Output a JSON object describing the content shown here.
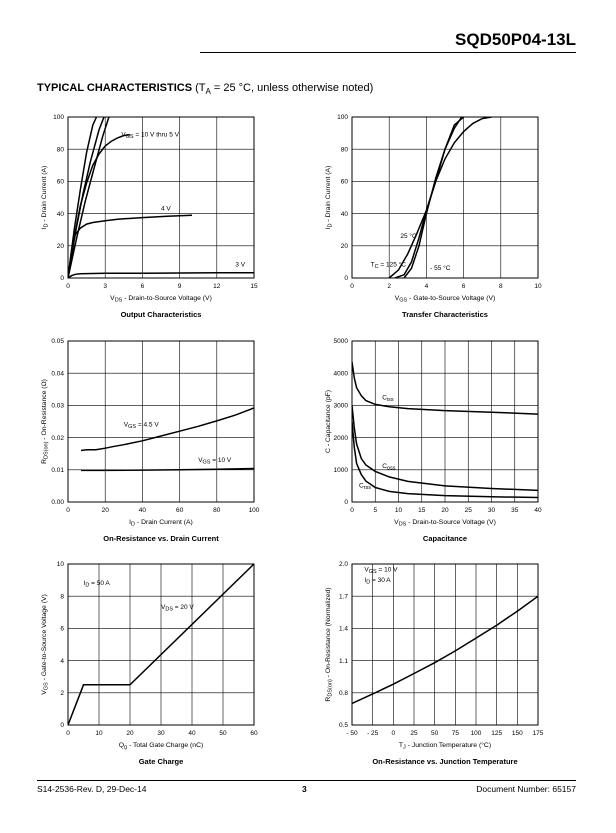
{
  "header": {
    "part_number": "SQD50P04-13L"
  },
  "section": {
    "title": "TYPICAL CHARACTERISTICS",
    "cond_pre": "(T",
    "cond_sub": "A",
    "cond_post": " = 25 °C, unless otherwise noted)"
  },
  "footer": {
    "left": "S14-2536-Rev. D, 29-Dec-14",
    "page": "3",
    "right": "Document Number: 65157"
  },
  "colors": {
    "line": "#000000",
    "grid": "#000000"
  },
  "chart_data": [
    {
      "type": "line",
      "title": "Output Characteristics",
      "xlabel": [
        [
          "V"
        ],
        [
          "DS",
          "sub"
        ],
        [
          " - Drain-to-Source Voltage (V)"
        ]
      ],
      "ylabel": [
        [
          "I"
        ],
        [
          "D",
          "sub"
        ],
        [
          " - Drain Current (A)"
        ]
      ],
      "xlim": [
        0,
        15
      ],
      "ylim": [
        0,
        100
      ],
      "xticks": [
        0,
        3,
        6,
        9,
        12,
        15
      ],
      "yticks": [
        0,
        20,
        40,
        60,
        80,
        100
      ],
      "grid": true,
      "series": [
        {
          "x": [
            0,
            0.5,
            1,
            1.5,
            2.0,
            2.3
          ],
          "y": [
            0,
            30,
            55,
            78,
            95,
            100
          ]
        },
        {
          "x": [
            0,
            0.6,
            1.2,
            1.8,
            2.5,
            2.9
          ],
          "y": [
            0,
            28,
            52,
            72,
            92,
            100
          ]
        },
        {
          "x": [
            0,
            0.7,
            1.4,
            2.1,
            2.8,
            3.3
          ],
          "y": [
            0,
            25,
            48,
            68,
            88,
            100
          ]
        },
        {
          "x": [
            0,
            0.5,
            1,
            1.5,
            2,
            2.5,
            3,
            3.5,
            4,
            4.5,
            5
          ],
          "y": [
            0,
            25,
            45,
            59,
            70,
            77,
            82,
            85,
            87,
            88.5,
            89
          ]
        },
        {
          "x": [
            0,
            0.3,
            0.6,
            1,
            1.5,
            2,
            3,
            4,
            6,
            8,
            10
          ],
          "y": [
            0,
            18,
            27,
            31,
            33.5,
            34.5,
            35.5,
            36.5,
            37.5,
            38.3,
            39
          ]
        },
        {
          "x": [
            0,
            0.3,
            0.6,
            1,
            2,
            3,
            6,
            9,
            12,
            15
          ],
          "y": [
            0,
            1.5,
            2.3,
            2.6,
            2.8,
            2.9,
            3.0,
            3.1,
            3.2,
            3.3
          ]
        }
      ],
      "annotations": [
        {
          "parts": [
            [
              "V"
            ],
            [
              "GS",
              "sub"
            ],
            [
              " = 10 V thru 5 V"
            ]
          ],
          "x": 4.3,
          "y": 88
        },
        {
          "parts": [
            [
              "4 V"
            ]
          ],
          "x": 7.5,
          "y": 42
        },
        {
          "parts": [
            [
              "3 V"
            ]
          ],
          "x": 13.5,
          "y": 7
        }
      ]
    },
    {
      "type": "line",
      "title": "Transfer Characteristics",
      "xlabel": [
        [
          "V"
        ],
        [
          "GS",
          "sub"
        ],
        [
          " - Gate-to-Source Voltage (V)"
        ]
      ],
      "ylabel": [
        [
          "I"
        ],
        [
          "D",
          "sub"
        ],
        [
          " - Drain Current (A)"
        ]
      ],
      "xlim": [
        0,
        10
      ],
      "ylim": [
        0,
        100
      ],
      "xticks": [
        0,
        2,
        4,
        6,
        8,
        10
      ],
      "yticks": [
        0,
        20,
        40,
        60,
        80,
        100
      ],
      "grid": true,
      "series": [
        {
          "name": "25 °C",
          "x": [
            2.3,
            2.8,
            3.2,
            3.6,
            4.0,
            4.5,
            5.0,
            5.5,
            6.0,
            6.5,
            7.0,
            7.5
          ],
          "y": [
            0,
            2,
            10,
            25,
            42,
            60,
            74,
            84,
            91,
            96,
            99,
            100
          ]
        },
        {
          "name": "125 °C",
          "x": [
            2.0,
            2.5,
            3.0,
            3.5,
            4.0,
            4.5,
            5.0,
            5.5,
            6.0
          ],
          "y": [
            0,
            5,
            15,
            28,
            42,
            60,
            80,
            95,
            100
          ]
        },
        {
          "name": "- 55 °C",
          "x": [
            2.8,
            3.2,
            3.6,
            4.0,
            4.5,
            5.0,
            5.5,
            5.9
          ],
          "y": [
            0,
            6,
            20,
            40,
            62,
            80,
            93,
            100
          ]
        }
      ],
      "annotations": [
        {
          "parts": [
            [
              "25 °C"
            ]
          ],
          "x": 2.6,
          "y": 25
        },
        {
          "parts": [
            [
              "T"
            ],
            [
              "C",
              "sub"
            ],
            [
              " = 125 °C"
            ]
          ],
          "x": 1.0,
          "y": 7
        },
        {
          "parts": [
            [
              "- 55 °C"
            ]
          ],
          "x": 4.2,
          "y": 5
        }
      ]
    },
    {
      "type": "line",
      "title": "On-Resistance vs. Drain Current",
      "xlabel": [
        [
          "I"
        ],
        [
          "D",
          "sub"
        ],
        [
          " - Drain Current (A)"
        ]
      ],
      "ylabel": [
        [
          "R"
        ],
        [
          "DS(on)",
          "sub"
        ],
        [
          " - On-Resistance (Ω)"
        ]
      ],
      "xlim": [
        0,
        100
      ],
      "ylim": [
        0,
        0.05
      ],
      "xticks": [
        0,
        20,
        40,
        60,
        80,
        100
      ],
      "yticks": [
        0.0,
        0.01,
        0.02,
        0.03,
        0.04,
        0.05
      ],
      "ytick_labels": [
        "0.00",
        "0.01",
        "0.02",
        "0.03",
        "0.04",
        "0.05"
      ],
      "grid": true,
      "series": [
        {
          "name": "VGS = 4.5 V",
          "x": [
            7,
            10,
            15,
            20,
            25,
            30,
            40,
            50,
            60,
            70,
            80,
            90,
            100
          ],
          "y": [
            0.016,
            0.0162,
            0.0162,
            0.0167,
            0.0173,
            0.0178,
            0.019,
            0.0205,
            0.022,
            0.0235,
            0.0252,
            0.027,
            0.0292
          ]
        },
        {
          "name": "VGS = 10 V",
          "x": [
            7,
            20,
            40,
            60,
            80,
            100
          ],
          "y": [
            0.0098,
            0.0098,
            0.0099,
            0.01,
            0.0102,
            0.0104
          ]
        }
      ],
      "annotations": [
        {
          "parts": [
            [
              "V"
            ],
            [
              "GS",
              "sub"
            ],
            [
              " = 4.5 V"
            ]
          ],
          "x": 30,
          "y": 0.0235
        },
        {
          "parts": [
            [
              "V"
            ],
            [
              "GS",
              "sub"
            ],
            [
              " = 10 V"
            ]
          ],
          "x": 70,
          "y": 0.0125
        }
      ]
    },
    {
      "type": "line",
      "title": "Capacitance",
      "xlabel": [
        [
          "V"
        ],
        [
          "DS",
          "sub"
        ],
        [
          " - Drain-to-Source Voltage (V)"
        ]
      ],
      "ylabel": [
        [
          "C - Capacitance (pF)"
        ]
      ],
      "xlim": [
        0,
        40
      ],
      "ylim": [
        0,
        5000
      ],
      "xticks": [
        0,
        5,
        10,
        15,
        20,
        25,
        30,
        35,
        40
      ],
      "yticks": [
        0,
        1000,
        2000,
        3000,
        4000,
        5000
      ],
      "grid": true,
      "series": [
        {
          "name": "Ciss",
          "x": [
            0,
            0.5,
            1,
            2,
            3,
            5,
            8,
            12,
            20,
            30,
            40
          ],
          "y": [
            4350,
            3850,
            3550,
            3300,
            3150,
            3030,
            2960,
            2900,
            2840,
            2790,
            2730
          ]
        },
        {
          "name": "Coss",
          "x": [
            0,
            0.5,
            1,
            2,
            3,
            5,
            8,
            12,
            20,
            30,
            40
          ],
          "y": [
            3000,
            2300,
            1800,
            1350,
            1150,
            950,
            780,
            640,
            500,
            420,
            360
          ]
        },
        {
          "name": "Crss",
          "x": [
            0,
            0.5,
            1,
            2,
            3,
            5,
            8,
            12,
            20,
            30,
            40
          ],
          "y": [
            2500,
            1700,
            1200,
            850,
            650,
            450,
            330,
            260,
            200,
            160,
            140
          ]
        }
      ],
      "annotations": [
        {
          "parts": [
            [
              "C"
            ],
            [
              "iss",
              "sub"
            ]
          ],
          "x": 6.5,
          "y": 3180
        },
        {
          "parts": [
            [
              "C"
            ],
            [
              "oss",
              "sub"
            ]
          ],
          "x": 6.5,
          "y": 1050
        },
        {
          "parts": [
            [
              "C"
            ],
            [
              "rss",
              "sub"
            ]
          ],
          "x": 1.5,
          "y": 450
        }
      ]
    },
    {
      "type": "line",
      "title": "Gate Charge",
      "xlabel": [
        [
          "Q"
        ],
        [
          "g",
          "sub"
        ],
        [
          " - Total Gate Charge (nC)"
        ]
      ],
      "ylabel": [
        [
          "V"
        ],
        [
          "GS",
          "sub"
        ],
        [
          " - Gate-to-Source Voltage (V)"
        ]
      ],
      "xlim": [
        0,
        60
      ],
      "ylim": [
        0,
        10
      ],
      "xticks": [
        0,
        10,
        20,
        30,
        40,
        50,
        60
      ],
      "yticks": [
        0,
        2,
        4,
        6,
        8,
        10
      ],
      "grid": true,
      "series": [
        {
          "x": [
            0,
            5,
            20,
            60
          ],
          "y": [
            0,
            2.5,
            2.5,
            10
          ]
        }
      ],
      "annotations": [
        {
          "parts": [
            [
              "I"
            ],
            [
              "D",
              "sub"
            ],
            [
              " = 50 A"
            ]
          ],
          "x": 5,
          "y": 8.7
        },
        {
          "parts": [
            [
              "V"
            ],
            [
              "DS",
              "sub"
            ],
            [
              " = 20 V"
            ]
          ],
          "x": 30,
          "y": 7.2
        }
      ]
    },
    {
      "type": "line",
      "title": "On-Resistance vs. Junction Temperature",
      "xlabel": [
        [
          "T"
        ],
        [
          "J",
          "sub"
        ],
        [
          " - Junction Temperature (°C)"
        ]
      ],
      "ylabel": [
        [
          "R"
        ],
        [
          "DS(on)",
          "sub"
        ],
        [
          " - On-Resistance (Normalized)"
        ]
      ],
      "xlim": [
        -50,
        175
      ],
      "ylim": [
        0.5,
        2.0
      ],
      "xticks": [
        -50,
        -25,
        0,
        25,
        50,
        75,
        100,
        125,
        150,
        175
      ],
      "xtick_labels": [
        "- 50",
        "- 25",
        "0",
        "25",
        "50",
        "75",
        "100",
        "125",
        "150",
        "175"
      ],
      "yticks": [
        0.5,
        0.8,
        1.1,
        1.4,
        1.7,
        2.0
      ],
      "ytick_labels": [
        "0.5",
        "0.8",
        "1.1",
        "1.4",
        "1.7",
        "2.0"
      ],
      "grid": true,
      "series": [
        {
          "x": [
            -50,
            -25,
            0,
            25,
            50,
            75,
            100,
            125,
            150,
            175
          ],
          "y": [
            0.7,
            0.79,
            0.88,
            0.98,
            1.08,
            1.19,
            1.31,
            1.43,
            1.56,
            1.7
          ]
        }
      ],
      "annotations": [
        {
          "parts": [
            [
              "V"
            ],
            [
              "GS",
              "sub"
            ],
            [
              " = 10 V"
            ]
          ],
          "x": -35,
          "y": 1.93
        },
        {
          "parts": [
            [
              "I"
            ],
            [
              "D",
              "sub"
            ],
            [
              " = 30 A"
            ]
          ],
          "x": -35,
          "y": 1.83
        }
      ]
    }
  ]
}
